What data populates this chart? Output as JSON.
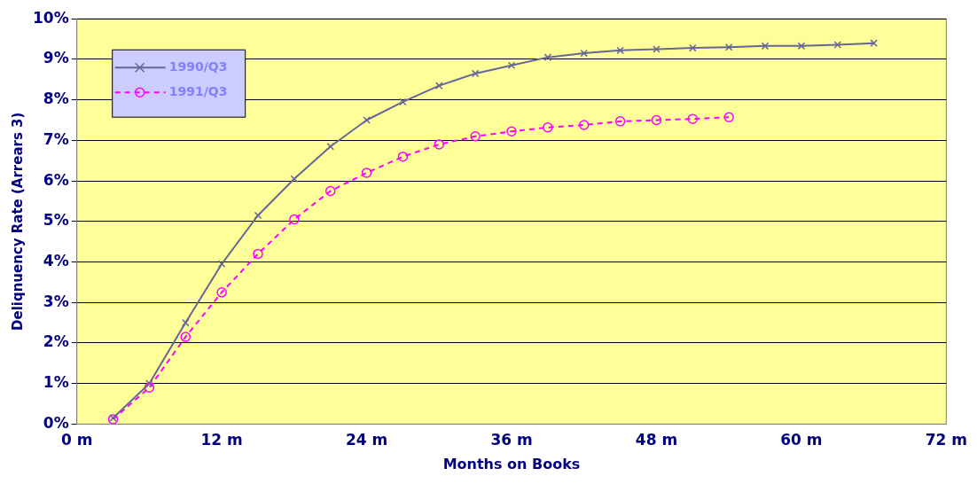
{
  "chart_data": {
    "type": "line",
    "xlabel": "Months on Books",
    "ylabel": "Deliqnuency Rate (Arrears 3)",
    "xlim": [
      0,
      72
    ],
    "xticks": [
      {
        "value": 0,
        "label": "0 m"
      },
      {
        "value": 12,
        "label": "12 m"
      },
      {
        "value": 24,
        "label": "24 m"
      },
      {
        "value": 36,
        "label": "36 m"
      },
      {
        "value": 48,
        "label": "48 m"
      },
      {
        "value": 60,
        "label": "60 m"
      },
      {
        "value": 72,
        "label": "72 m"
      }
    ],
    "ylim": [
      0,
      10
    ],
    "yticks": [
      {
        "value": 0,
        "label": "0%"
      },
      {
        "value": 1,
        "label": "1%"
      },
      {
        "value": 2,
        "label": "2%"
      },
      {
        "value": 3,
        "label": "3%"
      },
      {
        "value": 4,
        "label": "4%"
      },
      {
        "value": 5,
        "label": "5%"
      },
      {
        "value": 6,
        "label": "6%"
      },
      {
        "value": 7,
        "label": "7%"
      },
      {
        "value": 8,
        "label": "8%"
      },
      {
        "value": 9,
        "label": "9%"
      },
      {
        "value": 10,
        "label": "10%"
      }
    ],
    "grid": "y",
    "legend": "top left",
    "series": [
      {
        "name": "1990/Q3",
        "color": "#666699",
        "marker": "cross",
        "line_style": "solid",
        "x": [
          3,
          6,
          9,
          12,
          15,
          18,
          21,
          24,
          27,
          30,
          33,
          36,
          39,
          42,
          45,
          48,
          51,
          54,
          57,
          60,
          63,
          66
        ],
        "values": [
          0.15,
          1.0,
          2.5,
          3.95,
          5.15,
          6.05,
          6.85,
          7.5,
          7.95,
          8.35,
          8.65,
          8.85,
          9.05,
          9.15,
          9.22,
          9.25,
          9.28,
          9.3,
          9.33,
          9.33,
          9.36,
          9.4
        ]
      },
      {
        "name": "1991/Q3",
        "color": "#ff00ff",
        "marker": "circle",
        "line_style": "dashed",
        "x": [
          3,
          6,
          9,
          12,
          15,
          18,
          21,
          24,
          27,
          30,
          33,
          36,
          39,
          42,
          45,
          48,
          51,
          54
        ],
        "values": [
          0.12,
          0.9,
          2.15,
          3.25,
          4.2,
          5.05,
          5.75,
          6.2,
          6.6,
          6.9,
          7.1,
          7.22,
          7.32,
          7.38,
          7.47,
          7.5,
          7.53,
          7.57
        ]
      }
    ]
  }
}
